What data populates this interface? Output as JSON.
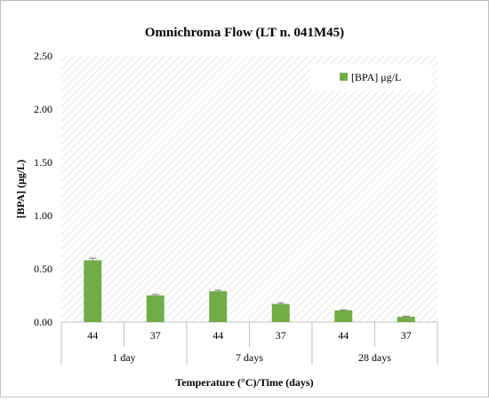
{
  "chart_data": {
    "type": "bar",
    "title": "Omnichroma Flow (LT n. 041M45)",
    "xlabel": "Temperature (°C)/Time (days)",
    "ylabel": "[BPA]  (μg/L)",
    "ylim": [
      0,
      2.5
    ],
    "y_ticks": [
      "0.00",
      "0.50",
      "1.00",
      "1.50",
      "2.00",
      "2.50"
    ],
    "grid": true,
    "legend_position": "top-right",
    "groups": [
      "1 day",
      "7 days",
      "28 days"
    ],
    "categories": [
      "44",
      "37",
      "44",
      "37",
      "44",
      "37"
    ],
    "series": [
      {
        "name": "[BPA] μg/L",
        "values": [
          0.58,
          0.25,
          0.29,
          0.17,
          0.11,
          0.05
        ],
        "errors": [
          0.02,
          0.01,
          0.01,
          0.01,
          0.005,
          0.005
        ],
        "color": "#70ad47"
      }
    ],
    "colors": {
      "bar": "#70ad47",
      "error_bar": "#7f7f7f",
      "axis": "#bfbfbf",
      "hatch": "#d9d9d9"
    }
  }
}
